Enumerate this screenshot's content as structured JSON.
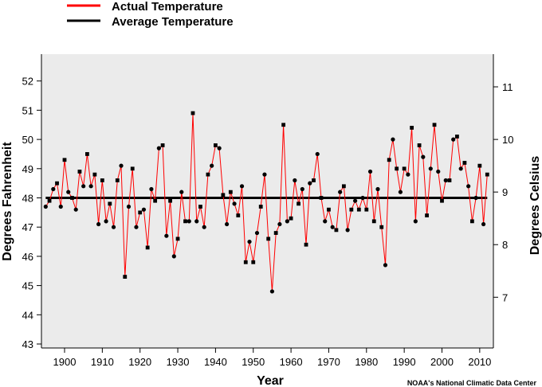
{
  "chart_data": {
    "type": "line",
    "title": "",
    "xlabel": "Year",
    "ylabel": "Degrees Fahrenheit",
    "ylabel_right": "Degrees Celsius",
    "xlim": [
      1894,
      2013
    ],
    "ylim": [
      42.9,
      53.0
    ],
    "x_ticks": [
      1900,
      1910,
      1920,
      1930,
      1940,
      1950,
      1960,
      1970,
      1980,
      1990,
      2000,
      2010
    ],
    "x_tick_labels": [
      "1900",
      "1910",
      "1920",
      "1930",
      "1940",
      "1950",
      "1960",
      "1970",
      "1980",
      "1990",
      "2000",
      "2010"
    ],
    "y_ticks": [
      43,
      44,
      45,
      46,
      47,
      48,
      49,
      50,
      51,
      52
    ],
    "y_tick_labels": [
      "43",
      "44",
      "45",
      "46",
      "47",
      "48",
      "49",
      "50",
      "51",
      "52"
    ],
    "y_right_ticks": [
      7,
      8,
      9,
      10,
      11
    ],
    "y_right_tick_labels": [
      "7",
      "8",
      "9",
      "10",
      "11"
    ],
    "grid": false,
    "legend_position": "top-left, above plot",
    "colors": {
      "actual": "#ff0000",
      "average": "#000000",
      "plot_bg": "#ebebeb",
      "marker": "#000000"
    },
    "series": [
      {
        "name": "Actual Temperature",
        "x": [
          1895,
          1896,
          1897,
          1898,
          1899,
          1900,
          1901,
          1902,
          1903,
          1904,
          1905,
          1906,
          1907,
          1908,
          1909,
          1910,
          1911,
          1912,
          1913,
          1914,
          1915,
          1916,
          1917,
          1918,
          1919,
          1920,
          1921,
          1922,
          1923,
          1924,
          1925,
          1926,
          1927,
          1928,
          1929,
          1930,
          1931,
          1932,
          1933,
          1934,
          1935,
          1936,
          1937,
          1938,
          1939,
          1940,
          1941,
          1942,
          1943,
          1944,
          1945,
          1946,
          1947,
          1948,
          1949,
          1950,
          1951,
          1952,
          1953,
          1954,
          1955,
          1956,
          1957,
          1958,
          1959,
          1960,
          1961,
          1962,
          1963,
          1964,
          1965,
          1966,
          1967,
          1968,
          1969,
          1970,
          1971,
          1972,
          1973,
          1974,
          1975,
          1976,
          1977,
          1978,
          1979,
          1980,
          1981,
          1982,
          1983,
          1984,
          1985,
          1986,
          1987,
          1988,
          1989,
          1990,
          1991,
          1992,
          1993,
          1994,
          1995,
          1996,
          1997,
          1998,
          1999,
          2000,
          2001,
          2002,
          2003,
          2004,
          2005,
          2006,
          2007,
          2008,
          2009,
          2010,
          2011,
          2012
        ],
        "values": [
          47.7,
          47.9,
          48.3,
          48.5,
          47.7,
          49.3,
          48.2,
          48.0,
          47.6,
          48.9,
          48.4,
          49.5,
          48.4,
          48.8,
          47.1,
          48.6,
          47.2,
          47.8,
          47.0,
          48.6,
          49.1,
          45.3,
          47.7,
          49.0,
          47.0,
          47.5,
          47.6,
          46.3,
          48.3,
          47.9,
          49.7,
          49.8,
          46.7,
          47.9,
          46.0,
          46.6,
          48.2,
          47.2,
          47.2,
          50.9,
          47.2,
          47.7,
          47.0,
          48.8,
          49.1,
          49.8,
          49.7,
          48.1,
          47.1,
          48.2,
          47.8,
          47.4,
          48.4,
          45.8,
          46.5,
          45.8,
          46.8,
          47.7,
          48.8,
          46.6,
          44.8,
          46.8,
          47.1,
          50.5,
          47.2,
          47.3,
          48.6,
          47.8,
          48.3,
          46.4,
          48.5,
          48.6,
          49.5,
          48.0,
          47.2,
          47.6,
          47.0,
          46.9,
          48.2,
          48.4,
          46.9,
          47.6,
          47.9,
          47.6,
          48.0,
          47.6,
          48.9,
          47.2,
          48.3,
          47.0,
          45.7,
          49.3,
          50.0,
          49.0,
          48.2,
          49.0,
          48.8,
          50.4,
          47.2,
          49.8,
          49.4,
          47.4,
          49.0,
          50.5,
          48.9,
          47.9,
          48.6,
          48.6,
          50.0,
          50.1,
          49.0,
          49.2,
          48.4,
          47.2,
          48.0,
          49.1,
          47.1,
          48.8
        ]
      },
      {
        "name": "Average Temperature",
        "x": [
          1895,
          2012
        ],
        "values": [
          48.0,
          48.0
        ]
      }
    ],
    "credit": "NOAA's National Climatic Data Center"
  }
}
